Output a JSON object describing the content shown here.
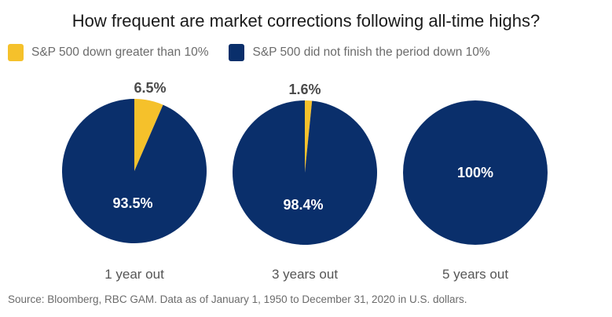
{
  "chart_data": {
    "type": "pie",
    "title": "How frequent are market corrections following all-time highs?",
    "legend": [
      {
        "name": "S&P 500 down greater than 10%",
        "color": "#f5c12b"
      },
      {
        "name": "S&P 500 did not finish the period down 10%",
        "color": "#0a2f6b"
      }
    ],
    "legend_position": "top-left",
    "pies": [
      {
        "category": "1 year out",
        "slices": [
          {
            "series": "S&P 500 down greater than 10%",
            "value": 6.5,
            "label": "6.5%"
          },
          {
            "series": "S&P 500 did not finish the period down 10%",
            "value": 93.5,
            "label": "93.5%"
          }
        ]
      },
      {
        "category": "3 years out",
        "slices": [
          {
            "series": "S&P 500 down greater than 10%",
            "value": 1.6,
            "label": "1.6%"
          },
          {
            "series": "S&P 500 did not finish the period down 10%",
            "value": 98.4,
            "label": "98.4%"
          }
        ]
      },
      {
        "category": "5 years out",
        "slices": [
          {
            "series": "S&P 500 down greater than 10%",
            "value": 0,
            "label": ""
          },
          {
            "series": "S&P 500 did not finish the period down 10%",
            "value": 100,
            "label": "100%"
          }
        ]
      }
    ],
    "source": "Source: Bloomberg, RBC GAM. Data as of January 1, 1950 to December 31, 2020 in U.S. dollars."
  }
}
